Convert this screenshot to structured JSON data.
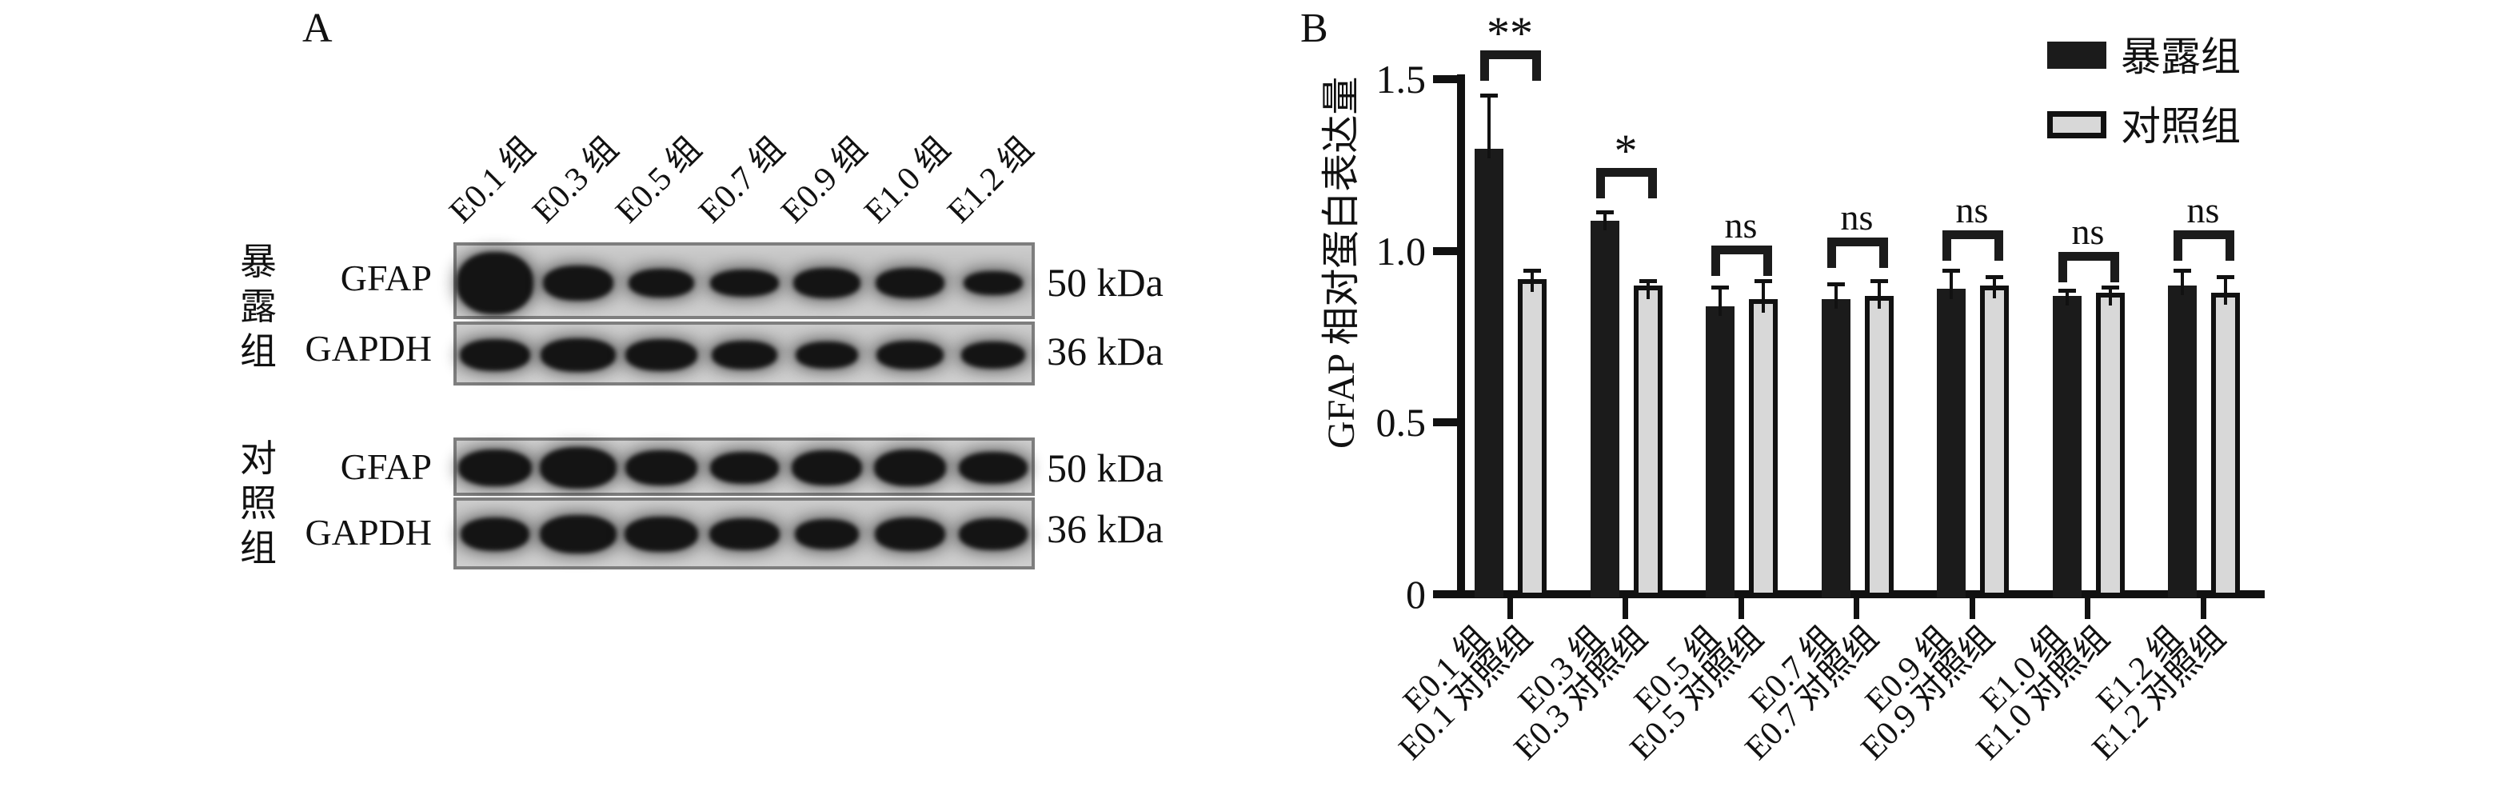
{
  "panel_a": {
    "label": "A",
    "lane_labels": [
      "E0.1 组",
      "E0.3 组",
      "E0.5 组",
      "E0.7 组",
      "E0.9 组",
      "E1.0 组",
      "E1.2 组"
    ],
    "groups": [
      {
        "name": "暴露组",
        "rows": [
          {
            "protein": "GFAP",
            "marker": "50 kDa"
          },
          {
            "protein": "GAPDH",
            "marker": "36 kDa"
          }
        ]
      },
      {
        "name": "对照组",
        "rows": [
          {
            "protein": "GFAP",
            "marker": "50 kDa"
          },
          {
            "protein": "GAPDH",
            "marker": "36 kDa"
          }
        ]
      }
    ],
    "bands": {
      "exp_gfap": {
        "h": [
          78,
          44,
          36,
          34,
          38,
          38,
          30
        ],
        "w": [
          96,
          88,
          82,
          86,
          84,
          86,
          74
        ]
      },
      "exp_gapdh": {
        "h": [
          40,
          42,
          40,
          36,
          34,
          36,
          34
        ],
        "w": [
          88,
          94,
          90,
          82,
          78,
          84,
          80
        ]
      },
      "ctl_gfap": {
        "h": [
          46,
          52,
          44,
          40,
          44,
          46,
          40
        ],
        "w": [
          92,
          96,
          90,
          86,
          88,
          90,
          86
        ]
      },
      "ctl_gapdh": {
        "h": [
          42,
          48,
          44,
          40,
          38,
          42,
          40
        ],
        "w": [
          86,
          96,
          92,
          88,
          80,
          88,
          86
        ]
      }
    }
  },
  "panel_b": {
    "label": "B"
  },
  "chart_data": {
    "type": "bar",
    "title": "",
    "xlabel": "",
    "ylabel": "GFAP 相对蛋白表达量",
    "ylim": [
      0,
      1.5
    ],
    "yticks_top_to_bottom": [
      "1.5",
      "1.0",
      "0.5",
      "0"
    ],
    "grid": false,
    "legend_position": "top-right",
    "groups": [
      "E0.1",
      "E0.3",
      "E0.5",
      "E0.7",
      "E0.9",
      "E1.0",
      "E1.2"
    ],
    "categories": [
      "E0.1 组",
      "E0.1 对照组",
      "E0.3 组",
      "E0.3 对照组",
      "E0.5 组",
      "E0.5 对照组",
      "E0.7 组",
      "E0.7 对照组",
      "E0.9 组",
      "E0.9 对照组",
      "E1.0 组",
      "E1.0 对照组",
      "E1.2 组",
      "E1.2 对照组"
    ],
    "series": [
      {
        "name": "暴露组",
        "color": "#1b1b1b",
        "values": [
          1.3,
          1.09,
          0.84,
          0.86,
          0.89,
          0.87,
          0.9
        ],
        "errors": [
          0.16,
          0.03,
          0.06,
          0.05,
          0.06,
          0.02,
          0.05
        ]
      },
      {
        "name": "对照组",
        "color": "#d8d8d8",
        "values": [
          0.92,
          0.9,
          0.86,
          0.87,
          0.9,
          0.88,
          0.88
        ],
        "errors": [
          0.03,
          0.02,
          0.06,
          0.05,
          0.03,
          0.02,
          0.05
        ]
      }
    ],
    "significance": [
      "**",
      "*",
      "ns",
      "ns",
      "ns",
      "ns",
      "ns"
    ]
  }
}
